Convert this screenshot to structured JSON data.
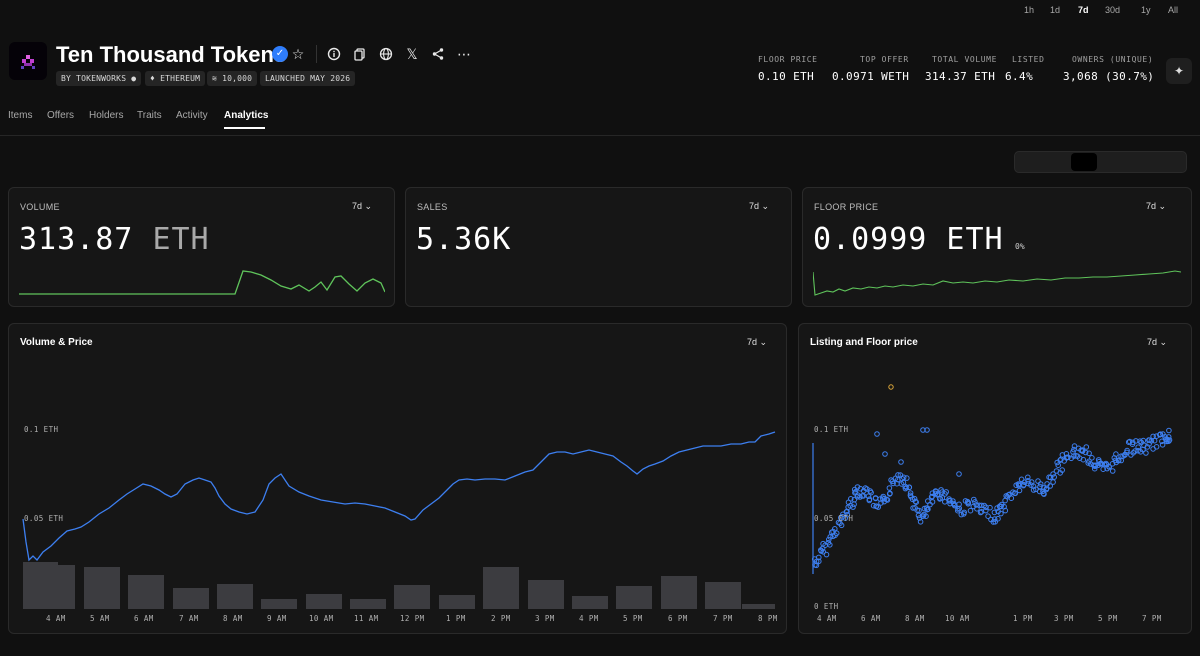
{
  "collection": {
    "title": "Ten Thousand Tokens",
    "chips": [
      "BY TOKENWORKS",
      "ETHEREUM",
      "10,000",
      "LAUNCHED MAY 2026"
    ]
  },
  "header_icons": [
    "star-icon",
    "info-icon",
    "copy-icon",
    "globe-icon",
    "x-icon",
    "share-icon",
    "more-icon"
  ],
  "stats": [
    {
      "label": "FLOOR PRICE",
      "value": "0.10 ETH"
    },
    {
      "label": "TOP OFFER",
      "value": "0.0971 WETH"
    },
    {
      "label": "TOTAL VOLUME",
      "value": "314.37 ETH"
    },
    {
      "label": "LISTED",
      "value": "6.4%"
    },
    {
      "label": "OWNERS (UNIQUE)",
      "value": "3,068 (30.7%)"
    }
  ],
  "tabs": [
    "Items",
    "Offers",
    "Holders",
    "Traits",
    "Activity",
    "Analytics"
  ],
  "active_tab": "Analytics",
  "ranges": [
    "1h",
    "1d",
    "7d",
    "30d",
    "1y",
    "All"
  ],
  "selected_range": "7d",
  "cards": {
    "volume": {
      "label": "VOLUME",
      "value": "313.87",
      "unit": "ETH",
      "range": "7d"
    },
    "sales": {
      "label": "SALES",
      "value": "5.36K",
      "range": "7d"
    },
    "floor": {
      "label": "FLOOR PRICE",
      "value": "0.0999 ETH",
      "change": "0%",
      "range": "7d"
    }
  },
  "volume_price": {
    "title": "Volume & Price",
    "range": "7d",
    "y_ticks": [
      "0.1 ETH",
      "0.05 ETH"
    ],
    "x_ticks": [
      "4 AM",
      "5 AM",
      "6 AM",
      "7 AM",
      "8 AM",
      "9 AM",
      "10 AM",
      "11 AM",
      "12 PM",
      "1 PM",
      "2 PM",
      "3 PM",
      "4 PM",
      "5 PM",
      "6 PM",
      "7 PM",
      "8 PM"
    ]
  },
  "listing_floor": {
    "title": "Listing and Floor price",
    "range": "7d",
    "y_ticks": [
      "0.1 ETH",
      "0.05 ETH",
      "0 ETH"
    ],
    "x_ticks": [
      "4 AM",
      "6 AM",
      "8 AM",
      "10 AM",
      "1 PM",
      "3 PM",
      "5 PM",
      "7 PM"
    ]
  },
  "colors": {
    "accent_blue": "#3d7ff0",
    "sparkline_green": "#5fc45b",
    "verified_blue": "#2f7dfb",
    "bar_gray": "#3c3c40",
    "outlier_orange": "#d9a53a"
  }
}
